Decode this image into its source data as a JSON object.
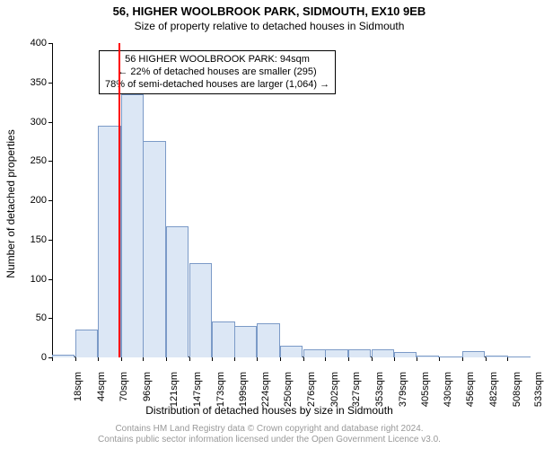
{
  "chart": {
    "type": "histogram",
    "title": "56, HIGHER WOOLBROOK PARK, SIDMOUTH, EX10 9EB",
    "subtitle": "Size of property relative to detached houses in Sidmouth",
    "x_axis_title": "Distribution of detached houses by size in Sidmouth",
    "y_axis_title": "Number of detached properties",
    "background_color": "#ffffff",
    "text_color": "#000000",
    "bar_fill": "#dce7f5",
    "bar_stroke": "#7b9ac7",
    "marker_color": "#ff0000",
    "marker_x_value": 94,
    "x_min": 18,
    "x_max": 546,
    "y_min": 0,
    "y_max": 400,
    "y_ticks": [
      0,
      50,
      100,
      150,
      200,
      250,
      300,
      350,
      400
    ],
    "x_tick_values": [
      18,
      44,
      70,
      96,
      121,
      147,
      173,
      199,
      224,
      250,
      276,
      302,
      327,
      353,
      379,
      405,
      430,
      456,
      482,
      508,
      533
    ],
    "x_tick_unit": "sqm",
    "bar_width_value": 25.75,
    "bars": [
      {
        "x_start": 18,
        "count": 3
      },
      {
        "x_start": 44,
        "count": 36
      },
      {
        "x_start": 70,
        "count": 295
      },
      {
        "x_start": 96,
        "count": 335
      },
      {
        "x_start": 121,
        "count": 276
      },
      {
        "x_start": 147,
        "count": 167
      },
      {
        "x_start": 173,
        "count": 120
      },
      {
        "x_start": 199,
        "count": 46
      },
      {
        "x_start": 224,
        "count": 40
      },
      {
        "x_start": 250,
        "count": 44
      },
      {
        "x_start": 276,
        "count": 15
      },
      {
        "x_start": 302,
        "count": 10
      },
      {
        "x_start": 327,
        "count": 10
      },
      {
        "x_start": 353,
        "count": 10
      },
      {
        "x_start": 379,
        "count": 10
      },
      {
        "x_start": 405,
        "count": 7
      },
      {
        "x_start": 430,
        "count": 2
      },
      {
        "x_start": 456,
        "count": 0
      },
      {
        "x_start": 482,
        "count": 8
      },
      {
        "x_start": 508,
        "count": 2
      },
      {
        "x_start": 533,
        "count": 0
      }
    ],
    "annotation": {
      "line1": "56 HIGHER WOOLBROOK PARK: 94sqm",
      "line2": "← 22% of detached houses are smaller (295)",
      "line3": "78% of semi-detached houses are larger (1,064) →"
    },
    "attribution": {
      "line1": "Contains HM Land Registry data © Crown copyright and database right 2024.",
      "line2": "Contains public sector information licensed under the Open Government Licence v3.0.",
      "color": "#999999",
      "fontsize": 10
    },
    "title_fontsize": 13,
    "subtitle_fontsize": 12,
    "axis_title_fontsize": 12,
    "tick_fontsize": 11,
    "annotation_fontsize": 11
  }
}
